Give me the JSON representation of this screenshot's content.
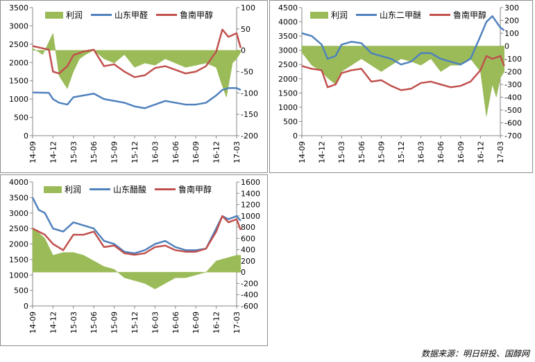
{
  "source_note": "数据来源：明日研投、国醇网",
  "colors": {
    "profit": "#9bbb59",
    "product": "#4f81bd",
    "methanol": "#c0504d"
  },
  "chart_data": [
    {
      "type": "line",
      "legend": [
        "利润",
        "山东甲醛",
        "鲁南甲醇"
      ],
      "x_ticks": [
        "14-09",
        "14-12",
        "15-03",
        "15-06",
        "15-09",
        "15-12",
        "16-03",
        "16-06",
        "16-09",
        "16-12",
        "17-03"
      ],
      "left_axis": {
        "ylim": [
          0,
          3500
        ],
        "ticks": [
          0,
          500,
          1000,
          1500,
          2000,
          2500,
          3000,
          3500
        ]
      },
      "right_axis": {
        "ylim": [
          -200,
          100
        ],
        "ticks": [
          -200,
          -150,
          -100,
          -50,
          0,
          50,
          100
        ]
      },
      "series": [
        {
          "name": "利润",
          "type": "area",
          "axis": "right",
          "x": [
            0,
            0.5,
            1,
            1.3,
            1.7,
            2,
            2.3,
            2.6,
            3,
            3.5,
            4,
            4.5,
            5,
            5.5,
            6,
            6.5,
            7,
            7.5,
            8,
            8.5,
            9,
            9.2,
            9.5,
            9.8,
            10,
            10.2
          ],
          "values": [
            5,
            -10,
            40,
            -60,
            -90,
            -50,
            -20,
            -10,
            0,
            -20,
            -30,
            -10,
            -40,
            -30,
            -35,
            -20,
            -30,
            -40,
            -35,
            -30,
            -40,
            -70,
            -110,
            -30,
            -20,
            -5
          ]
        },
        {
          "name": "山东甲醛",
          "type": "line",
          "axis": "left",
          "x": [
            0,
            0.8,
            1,
            1.3,
            1.7,
            2,
            2.5,
            3,
            3.5,
            4,
            4.5,
            5,
            5.5,
            6,
            6.5,
            7,
            7.5,
            8,
            8.5,
            9,
            9.3,
            9.6,
            10,
            10.2
          ],
          "values": [
            1180,
            1170,
            1000,
            900,
            850,
            1050,
            1100,
            1150,
            1000,
            950,
            900,
            800,
            750,
            850,
            950,
            900,
            850,
            850,
            900,
            1100,
            1250,
            1300,
            1300,
            1250
          ]
        },
        {
          "name": "鲁南甲醇",
          "type": "line",
          "axis": "left",
          "x": [
            0,
            0.8,
            1,
            1.3,
            1.7,
            2,
            2.5,
            3,
            3.5,
            4,
            4.5,
            5,
            5.5,
            6,
            6.5,
            7,
            7.5,
            8,
            8.5,
            9,
            9.3,
            9.6,
            10,
            10.2
          ],
          "values": [
            2450,
            2350,
            1750,
            1700,
            1900,
            2200,
            2300,
            2350,
            1900,
            1950,
            1750,
            1600,
            1650,
            1850,
            1900,
            1800,
            1700,
            1750,
            1900,
            2300,
            2900,
            2700,
            2800,
            2400
          ]
        }
      ]
    },
    {
      "type": "line",
      "legend": [
        "利润",
        "山东二甲醚",
        "鲁南甲醇"
      ],
      "x_ticks": [
        "14-09",
        "14-12",
        "15-03",
        "15-06",
        "15-09",
        "15-12",
        "16-03",
        "16-06",
        "16-09",
        "16-12",
        "17-03"
      ],
      "left_axis": {
        "ylim": [
          0,
          4500
        ],
        "ticks": [
          0,
          500,
          1000,
          1500,
          2000,
          2500,
          3000,
          3500,
          4000,
          4500
        ]
      },
      "right_axis": {
        "ylim": [
          -700,
          300
        ],
        "ticks": [
          -700,
          -600,
          -500,
          -400,
          -300,
          -200,
          -100,
          0,
          100,
          200,
          300
        ]
      },
      "series": [
        {
          "name": "利润",
          "type": "area",
          "axis": "right",
          "x": [
            0,
            0.5,
            1,
            1.3,
            1.7,
            2,
            2.5,
            3,
            3.5,
            4,
            4.5,
            5,
            5.5,
            6,
            6.5,
            7,
            7.5,
            8,
            8.5,
            9,
            9.3,
            9.6,
            9.8,
            10,
            10.2
          ],
          "values": [
            -50,
            -150,
            -200,
            -250,
            -300,
            -200,
            -150,
            -100,
            -150,
            -200,
            -150,
            -100,
            -120,
            -150,
            -100,
            -200,
            -150,
            -150,
            -100,
            -200,
            -550,
            -300,
            -400,
            -250,
            -200
          ]
        },
        {
          "name": "山东二甲醚",
          "type": "line",
          "axis": "left",
          "x": [
            0,
            0.5,
            1,
            1.3,
            1.7,
            2,
            2.5,
            3,
            3.5,
            4,
            4.5,
            5,
            5.5,
            6,
            6.5,
            7,
            7.5,
            8,
            8.5,
            9,
            9.3,
            9.6,
            10,
            10.2
          ],
          "values": [
            3600,
            3500,
            3200,
            2700,
            2800,
            3200,
            3300,
            3250,
            2900,
            2800,
            2700,
            2500,
            2600,
            2900,
            2900,
            2700,
            2600,
            2500,
            2700,
            3500,
            4000,
            4200,
            3800,
            3700
          ]
        },
        {
          "name": "鲁南甲醇",
          "type": "line",
          "axis": "left",
          "x": [
            0,
            0.5,
            1,
            1.3,
            1.7,
            2,
            2.5,
            3,
            3.5,
            4,
            4.5,
            5,
            5.5,
            6,
            6.5,
            7,
            7.5,
            8,
            8.5,
            9,
            9.3,
            9.6,
            10,
            10.2
          ],
          "values": [
            2450,
            2350,
            2300,
            1700,
            1800,
            2200,
            2300,
            2350,
            1900,
            1950,
            1750,
            1600,
            1650,
            1850,
            1900,
            1800,
            1700,
            1750,
            1900,
            2300,
            2800,
            2700,
            2800,
            2450
          ]
        }
      ]
    },
    {
      "type": "line",
      "legend": [
        "利润",
        "山东醋酸",
        "鲁南甲醇"
      ],
      "x_ticks": [
        "14-09",
        "14-12",
        "15-03",
        "15-06",
        "15-09",
        "15-12",
        "16-03",
        "16-06",
        "16-09",
        "16-12",
        "17-03"
      ],
      "left_axis": {
        "ylim": [
          0,
          4000
        ],
        "ticks": [
          0,
          500,
          1000,
          1500,
          2000,
          2500,
          3000,
          3500,
          4000
        ]
      },
      "right_axis": {
        "ylim": [
          -600,
          1600
        ],
        "ticks": [
          -600,
          -400,
          -200,
          0,
          200,
          400,
          600,
          800,
          1000,
          1200,
          1400,
          1600
        ]
      },
      "series": [
        {
          "name": "利润",
          "type": "area",
          "axis": "right",
          "x": [
            0,
            0.3,
            0.6,
            1,
            1.5,
            2,
            2.5,
            3,
            3.5,
            4,
            4.5,
            5,
            5.5,
            6,
            6.5,
            7,
            7.5,
            8,
            8.5,
            9,
            9.5,
            10,
            10.2
          ],
          "values": [
            800,
            700,
            600,
            300,
            350,
            350,
            300,
            200,
            100,
            50,
            -100,
            -150,
            -200,
            -300,
            -200,
            -100,
            -100,
            -50,
            0,
            200,
            250,
            300,
            300
          ]
        },
        {
          "name": "山东醋酸",
          "type": "line",
          "axis": "left",
          "x": [
            0,
            0.3,
            0.6,
            1,
            1.5,
            2,
            2.5,
            3,
            3.5,
            4,
            4.5,
            5,
            5.5,
            6,
            6.5,
            7,
            7.5,
            8,
            8.5,
            9,
            9.3,
            9.6,
            10,
            10.2
          ],
          "values": [
            3500,
            3100,
            3000,
            2500,
            2400,
            2700,
            2600,
            2500,
            2100,
            2000,
            1750,
            1700,
            1800,
            2000,
            2100,
            1900,
            1800,
            1800,
            1850,
            2500,
            2900,
            2800,
            2900,
            2750
          ]
        },
        {
          "name": "鲁南甲醇",
          "type": "line",
          "axis": "left",
          "x": [
            0,
            0.3,
            0.6,
            1,
            1.5,
            2,
            2.5,
            3,
            3.5,
            4,
            4.5,
            5,
            5.5,
            6,
            6.5,
            7,
            7.5,
            8,
            8.5,
            9,
            9.3,
            9.6,
            10,
            10.2
          ],
          "values": [
            2500,
            2400,
            2300,
            2000,
            1800,
            2300,
            2300,
            2400,
            1900,
            1950,
            1700,
            1650,
            1700,
            1900,
            1950,
            1800,
            1750,
            1750,
            1850,
            2400,
            2900,
            2700,
            2800,
            2450
          ]
        }
      ]
    }
  ]
}
